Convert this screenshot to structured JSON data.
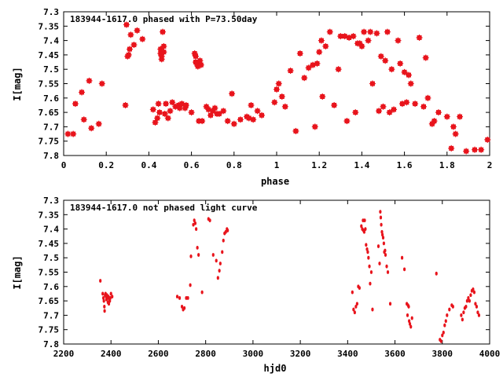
{
  "chart_data": [
    {
      "type": "scatter",
      "title": "183944-1617.0 phased with P=73.50day",
      "xlabel": "phase",
      "ylabel": "I[mag]",
      "xlim": [
        0,
        2
      ],
      "ylim": [
        7.3,
        7.8
      ],
      "y_inverted": true,
      "x_ticks": [
        "0",
        "0.2",
        "0.4",
        "0.6",
        "0.8",
        "1",
        "1.2",
        "1.4",
        "1.6",
        "1.8",
        "2"
      ],
      "y_ticks": [
        "7.3",
        "7.35",
        "7.4",
        "7.45",
        "7.5",
        "7.55",
        "7.6",
        "7.65",
        "7.7",
        "7.75",
        "7.8"
      ],
      "grid": false,
      "color": "#e8141c",
      "marker": "star",
      "points": [
        [
          0.02,
          7.725
        ],
        [
          0.045,
          7.725
        ],
        [
          0.055,
          7.62
        ],
        [
          0.085,
          7.58
        ],
        [
          0.095,
          7.675
        ],
        [
          0.12,
          7.54
        ],
        [
          0.13,
          7.705
        ],
        [
          0.165,
          7.69
        ],
        [
          0.18,
          7.55
        ],
        [
          0.29,
          7.625
        ],
        [
          0.295,
          7.345
        ],
        [
          0.3,
          7.455
        ],
        [
          0.305,
          7.45
        ],
        [
          0.31,
          7.43
        ],
        [
          0.315,
          7.38
        ],
        [
          0.33,
          7.415
        ],
        [
          0.345,
          7.365
        ],
        [
          0.37,
          7.395
        ],
        [
          0.42,
          7.64
        ],
        [
          0.43,
          7.685
        ],
        [
          0.44,
          7.67
        ],
        [
          0.445,
          7.62
        ],
        [
          0.45,
          7.65
        ],
        [
          0.455,
          7.43
        ],
        [
          0.455,
          7.445
        ],
        [
          0.46,
          7.455
        ],
        [
          0.46,
          7.465
        ],
        [
          0.465,
          7.37
        ],
        [
          0.47,
          7.42
        ],
        [
          0.47,
          7.44
        ],
        [
          0.475,
          7.655
        ],
        [
          0.48,
          7.62
        ],
        [
          0.49,
          7.67
        ],
        [
          0.5,
          7.645
        ],
        [
          0.51,
          7.615
        ],
        [
          0.525,
          7.63
        ],
        [
          0.54,
          7.625
        ],
        [
          0.545,
          7.635
        ],
        [
          0.555,
          7.62
        ],
        [
          0.57,
          7.635
        ],
        [
          0.575,
          7.625
        ],
        [
          0.6,
          7.65
        ],
        [
          0.615,
          7.445
        ],
        [
          0.62,
          7.455
        ],
        [
          0.62,
          7.475
        ],
        [
          0.625,
          7.48
        ],
        [
          0.63,
          7.49
        ],
        [
          0.635,
          7.68
        ],
        [
          0.64,
          7.47
        ],
        [
          0.645,
          7.485
        ],
        [
          0.65,
          7.68
        ],
        [
          0.67,
          7.63
        ],
        [
          0.68,
          7.64
        ],
        [
          0.69,
          7.66
        ],
        [
          0.7,
          7.645
        ],
        [
          0.71,
          7.635
        ],
        [
          0.72,
          7.655
        ],
        [
          0.73,
          7.655
        ],
        [
          0.75,
          7.645
        ],
        [
          0.77,
          7.68
        ],
        [
          0.79,
          7.585
        ],
        [
          0.8,
          7.69
        ],
        [
          0.83,
          7.675
        ],
        [
          0.86,
          7.665
        ],
        [
          0.87,
          7.67
        ],
        [
          0.88,
          7.625
        ],
        [
          0.89,
          7.675
        ],
        [
          0.91,
          7.645
        ],
        [
          0.93,
          7.66
        ],
        [
          0.99,
          7.615
        ],
        [
          1.0,
          7.57
        ],
        [
          1.01,
          7.55
        ],
        [
          1.025,
          7.595
        ],
        [
          1.04,
          7.63
        ],
        [
          1.065,
          7.505
        ],
        [
          1.09,
          7.715
        ],
        [
          1.11,
          7.445
        ],
        [
          1.13,
          7.53
        ],
        [
          1.15,
          7.495
        ],
        [
          1.17,
          7.485
        ],
        [
          1.18,
          7.7
        ],
        [
          1.19,
          7.48
        ],
        [
          1.2,
          7.44
        ],
        [
          1.21,
          7.4
        ],
        [
          1.215,
          7.595
        ],
        [
          1.23,
          7.42
        ],
        [
          1.25,
          7.37
        ],
        [
          1.27,
          7.625
        ],
        [
          1.29,
          7.5
        ],
        [
          1.3,
          7.385
        ],
        [
          1.32,
          7.385
        ],
        [
          1.33,
          7.68
        ],
        [
          1.34,
          7.39
        ],
        [
          1.36,
          7.385
        ],
        [
          1.37,
          7.65
        ],
        [
          1.38,
          7.41
        ],
        [
          1.39,
          7.41
        ],
        [
          1.4,
          7.42
        ],
        [
          1.41,
          7.37
        ],
        [
          1.43,
          7.4
        ],
        [
          1.44,
          7.37
        ],
        [
          1.45,
          7.55
        ],
        [
          1.47,
          7.375
        ],
        [
          1.48,
          7.645
        ],
        [
          1.49,
          7.455
        ],
        [
          1.5,
          7.63
        ],
        [
          1.51,
          7.47
        ],
        [
          1.52,
          7.37
        ],
        [
          1.53,
          7.65
        ],
        [
          1.54,
          7.5
        ],
        [
          1.55,
          7.64
        ],
        [
          1.57,
          7.4
        ],
        [
          1.58,
          7.48
        ],
        [
          1.59,
          7.62
        ],
        [
          1.6,
          7.51
        ],
        [
          1.61,
          7.615
        ],
        [
          1.62,
          7.52
        ],
        [
          1.63,
          7.55
        ],
        [
          1.65,
          7.62
        ],
        [
          1.67,
          7.39
        ],
        [
          1.69,
          7.63
        ],
        [
          1.7,
          7.46
        ],
        [
          1.71,
          7.6
        ],
        [
          1.73,
          7.69
        ],
        [
          1.74,
          7.68
        ],
        [
          1.76,
          7.65
        ],
        [
          1.8,
          7.665
        ],
        [
          1.82,
          7.775
        ],
        [
          1.83,
          7.7
        ],
        [
          1.84,
          7.725
        ],
        [
          1.86,
          7.665
        ],
        [
          1.89,
          7.785
        ],
        [
          1.93,
          7.78
        ],
        [
          1.96,
          7.78
        ],
        [
          1.99,
          7.745
        ]
      ]
    },
    {
      "type": "scatter",
      "title": "183944-1617.0 not phased light curve",
      "xlabel": "hjd0",
      "ylabel": "I[mag]",
      "xlim": [
        2200,
        4000
      ],
      "ylim": [
        7.3,
        7.8
      ],
      "y_inverted": true,
      "x_ticks": [
        "2200",
        "2400",
        "2600",
        "2800",
        "3000",
        "3200",
        "3400",
        "3600",
        "3800",
        "4000"
      ],
      "y_ticks": [
        "7.3",
        "7.35",
        "7.4",
        "7.45",
        "7.5",
        "7.55",
        "7.6",
        "7.65",
        "7.7",
        "7.75",
        "7.8"
      ],
      "grid": false,
      "color": "#e8141c",
      "marker": "dot",
      "points": [
        [
          2355,
          7.58
        ],
        [
          2365,
          7.625
        ],
        [
          2368,
          7.64
        ],
        [
          2370,
          7.65
        ],
        [
          2372,
          7.67
        ],
        [
          2373,
          7.685
        ],
        [
          2375,
          7.63
        ],
        [
          2377,
          7.625
        ],
        [
          2379,
          7.635
        ],
        [
          2381,
          7.645
        ],
        [
          2383,
          7.63
        ],
        [
          2385,
          7.64
        ],
        [
          2387,
          7.655
        ],
        [
          2389,
          7.635
        ],
        [
          2391,
          7.66
        ],
        [
          2393,
          7.645
        ],
        [
          2395,
          7.65
        ],
        [
          2397,
          7.64
        ],
        [
          2400,
          7.625
        ],
        [
          2405,
          7.635
        ],
        [
          2680,
          7.635
        ],
        [
          2690,
          7.64
        ],
        [
          2700,
          7.67
        ],
        [
          2705,
          7.68
        ],
        [
          2710,
          7.675
        ],
        [
          2718,
          7.64
        ],
        [
          2725,
          7.64
        ],
        [
          2735,
          7.595
        ],
        [
          2738,
          7.495
        ],
        [
          2748,
          7.385
        ],
        [
          2752,
          7.37
        ],
        [
          2756,
          7.38
        ],
        [
          2760,
          7.4
        ],
        [
          2765,
          7.465
        ],
        [
          2770,
          7.49
        ],
        [
          2785,
          7.62
        ],
        [
          2812,
          7.365
        ],
        [
          2818,
          7.37
        ],
        [
          2832,
          7.49
        ],
        [
          2845,
          7.51
        ],
        [
          2852,
          7.57
        ],
        [
          2858,
          7.545
        ],
        [
          2862,
          7.52
        ],
        [
          2870,
          7.48
        ],
        [
          2875,
          7.44
        ],
        [
          2880,
          7.415
        ],
        [
          2885,
          7.41
        ],
        [
          2890,
          7.4
        ],
        [
          2893,
          7.405
        ],
        [
          3420,
          7.62
        ],
        [
          3425,
          7.68
        ],
        [
          3430,
          7.69
        ],
        [
          3435,
          7.67
        ],
        [
          3440,
          7.66
        ],
        [
          3445,
          7.6
        ],
        [
          3450,
          7.605
        ],
        [
          3458,
          7.39
        ],
        [
          3462,
          7.4
        ],
        [
          3465,
          7.37
        ],
        [
          3467,
          7.405
        ],
        [
          3470,
          7.41
        ],
        [
          3472,
          7.37
        ],
        [
          3475,
          7.4
        ],
        [
          3478,
          7.455
        ],
        [
          3482,
          7.47
        ],
        [
          3485,
          7.48
        ],
        [
          3488,
          7.5
        ],
        [
          3492,
          7.53
        ],
        [
          3495,
          7.59
        ],
        [
          3500,
          7.55
        ],
        [
          3505,
          7.68
        ],
        [
          3530,
          7.46
        ],
        [
          3535,
          7.52
        ],
        [
          3538,
          7.34
        ],
        [
          3540,
          7.36
        ],
        [
          3542,
          7.385
        ],
        [
          3545,
          7.41
        ],
        [
          3547,
          7.42
        ],
        [
          3550,
          7.43
        ],
        [
          3553,
          7.45
        ],
        [
          3555,
          7.48
        ],
        [
          3558,
          7.475
        ],
        [
          3560,
          7.49
        ],
        [
          3565,
          7.53
        ],
        [
          3570,
          7.55
        ],
        [
          3580,
          7.66
        ],
        [
          3630,
          7.5
        ],
        [
          3640,
          7.54
        ],
        [
          3650,
          7.66
        ],
        [
          3653,
          7.7
        ],
        [
          3655,
          7.665
        ],
        [
          3658,
          7.67
        ],
        [
          3660,
          7.72
        ],
        [
          3663,
          7.73
        ],
        [
          3667,
          7.74
        ],
        [
          3672,
          7.71
        ],
        [
          3775,
          7.555
        ],
        [
          3790,
          7.785
        ],
        [
          3795,
          7.79
        ],
        [
          3800,
          7.77
        ],
        [
          3805,
          7.76
        ],
        [
          3810,
          7.735
        ],
        [
          3815,
          7.72
        ],
        [
          3820,
          7.7
        ],
        [
          3830,
          7.68
        ],
        [
          3840,
          7.665
        ],
        [
          3845,
          7.67
        ],
        [
          3880,
          7.7
        ],
        [
          3885,
          7.715
        ],
        [
          3890,
          7.69
        ],
        [
          3895,
          7.675
        ],
        [
          3900,
          7.67
        ],
        [
          3905,
          7.65
        ],
        [
          3910,
          7.64
        ],
        [
          3915,
          7.65
        ],
        [
          3920,
          7.63
        ],
        [
          3925,
          7.615
        ],
        [
          3930,
          7.61
        ],
        [
          3935,
          7.62
        ],
        [
          3940,
          7.66
        ],
        [
          3945,
          7.67
        ],
        [
          3950,
          7.69
        ],
        [
          3955,
          7.7
        ]
      ]
    }
  ]
}
